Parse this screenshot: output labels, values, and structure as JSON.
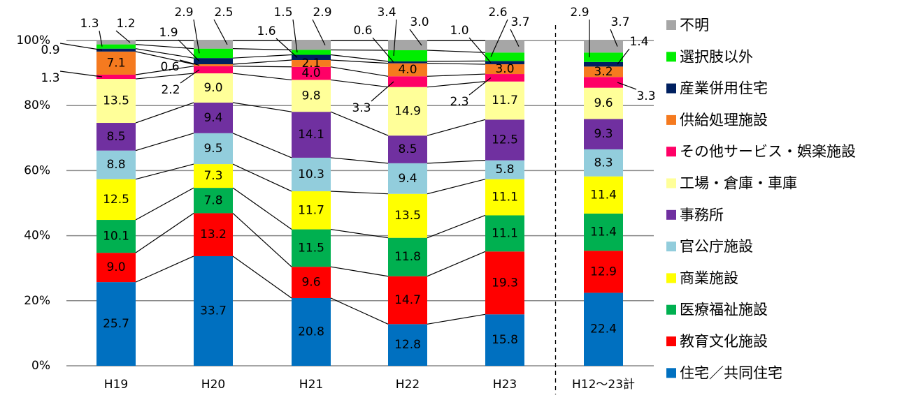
{
  "chart_data": {
    "type": "bar",
    "stacked": true,
    "percent": true,
    "categories": [
      "H19",
      "H20",
      "H21",
      "H22",
      "H23",
      "H12～23計"
    ],
    "y_ticks": [
      "0%",
      "20%",
      "40%",
      "60%",
      "80%",
      "100%"
    ],
    "ylim": [
      0,
      100
    ],
    "grid": true,
    "legend_position": "right",
    "series": [
      {
        "name": "住宅／共同住宅",
        "color": "#0070C0",
        "values": [
          25.7,
          33.7,
          20.8,
          12.8,
          15.8,
          22.4
        ]
      },
      {
        "name": "教育文化施設",
        "color": "#FF0000",
        "values": [
          9.0,
          13.2,
          9.6,
          14.7,
          19.3,
          12.9
        ]
      },
      {
        "name": "医療福祉施設",
        "color": "#00B050",
        "values": [
          10.1,
          7.8,
          11.5,
          11.8,
          11.1,
          11.4
        ]
      },
      {
        "name": "商業施設",
        "color": "#FFFF00",
        "values": [
          12.5,
          7.3,
          11.7,
          13.5,
          11.1,
          11.4
        ]
      },
      {
        "name": "官公庁施設",
        "color": "#92CDDC",
        "values": [
          8.8,
          9.5,
          10.3,
          9.4,
          5.8,
          8.3
        ]
      },
      {
        "name": "事務所",
        "color": "#7030A0",
        "values": [
          8.5,
          9.4,
          14.1,
          8.5,
          12.5,
          9.3
        ]
      },
      {
        "name": "工場・倉庫・車庫",
        "color": "#FFFF99",
        "values": [
          13.5,
          9.0,
          9.8,
          14.9,
          11.7,
          9.6
        ]
      },
      {
        "name": "その他サービス・娯楽施設",
        "color": "#FF0066",
        "values": [
          1.3,
          2.2,
          4.0,
          3.3,
          2.3,
          3.3
        ]
      },
      {
        "name": "供給処理施設",
        "color": "#F57A1F",
        "values": [
          7.1,
          0.6,
          2.1,
          4.0,
          3.0,
          3.2
        ]
      },
      {
        "name": "産業併用住宅",
        "color": "#002060",
        "values": [
          0.9,
          1.9,
          1.6,
          0.6,
          1.0,
          1.4
        ]
      },
      {
        "name": "選択肢以外",
        "color": "#00EE00",
        "values": [
          1.3,
          2.9,
          1.5,
          3.4,
          2.6,
          2.9
        ]
      },
      {
        "name": "不明",
        "color": "#A6A6A6",
        "values": [
          1.2,
          2.5,
          2.9,
          3.0,
          3.7,
          3.7
        ]
      }
    ],
    "value_labels": [
      [
        "25.7",
        "33.7",
        "20.8",
        "12.8",
        "15.8",
        "22.4"
      ],
      [
        "9.0",
        "13.2",
        "9.6",
        "14.7",
        "19.3",
        "12.9"
      ],
      [
        "10.1",
        "7.8",
        "11.5",
        "11.8",
        "11.1",
        "11.4"
      ],
      [
        "12.5",
        "7.3",
        "11.7",
        "13.5",
        "11.1",
        "11.4"
      ],
      [
        "8.8",
        "9.5",
        "10.3",
        "9.4",
        "5.8",
        "8.3"
      ],
      [
        "8.5",
        "9.4",
        "14.1",
        "8.5",
        "12.5",
        "9.3"
      ],
      [
        "13.5",
        "9.0",
        "9.8",
        "14.9",
        "11.7",
        "9.6"
      ],
      [
        "1.3",
        "2.2",
        "4.0",
        "3.3",
        "2.3",
        "3.3"
      ],
      [
        "7.1",
        "0.6",
        "2.1",
        "4.0",
        "3.0",
        "3.2"
      ],
      [
        "0.9",
        "1.9",
        "1.6",
        "0.6",
        "1.0",
        "1.4"
      ],
      [
        "1.3",
        "2.9",
        "1.5",
        "3.4",
        "2.6",
        "2.9"
      ],
      [
        "1.2",
        "2.5",
        "2.9",
        "3.0",
        "3.7",
        "3.7"
      ]
    ],
    "separator_before_category": 5
  }
}
